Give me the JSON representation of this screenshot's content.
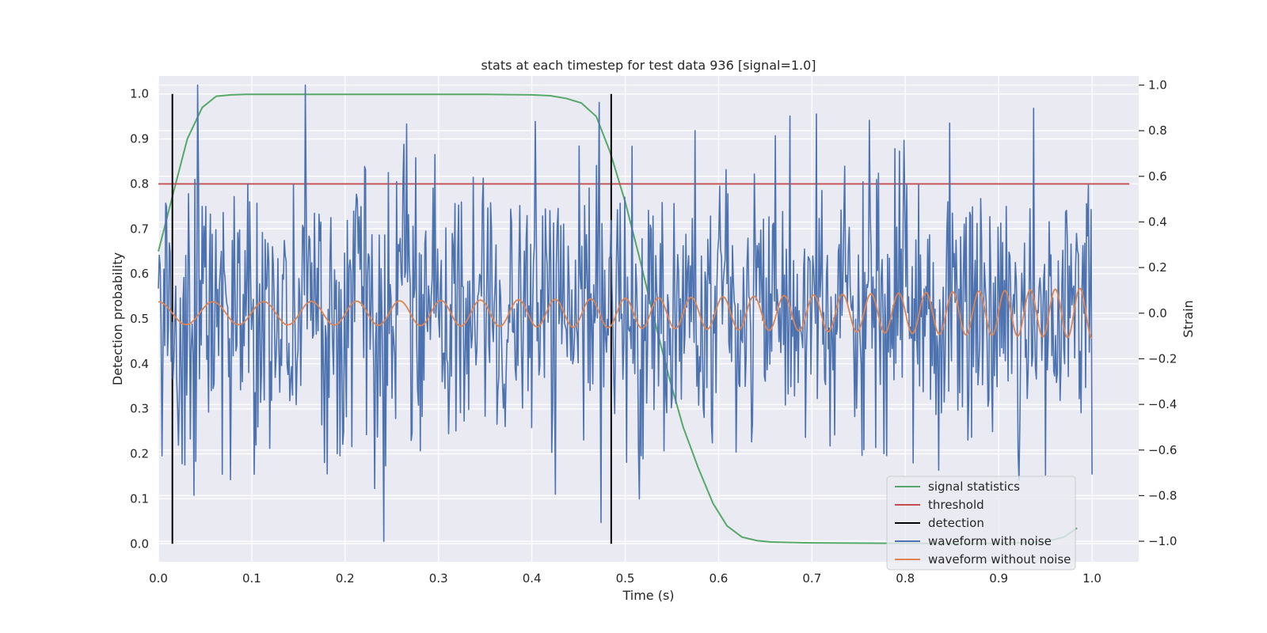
{
  "chart_data": {
    "type": "line",
    "title": "stats at each timestep for test data 936 [signal=1.0]",
    "xlabel": "Time (s)",
    "ylabel_left": "Detection probability",
    "ylabel_right": "Strain",
    "xlim": [
      0.0,
      1.05
    ],
    "ylim_left": [
      -0.04,
      1.04
    ],
    "ylim_right": [
      -1.09,
      1.04
    ],
    "x_ticks": [
      "0.0",
      "0.1",
      "0.2",
      "0.3",
      "0.4",
      "0.5",
      "0.6",
      "0.7",
      "0.8",
      "0.9",
      "1.0"
    ],
    "y_left_ticks": [
      "0.0",
      "0.1",
      "0.2",
      "0.3",
      "0.4",
      "0.5",
      "0.6",
      "0.7",
      "0.8",
      "0.9",
      "1.0"
    ],
    "y_right_ticks": [
      "−1.0",
      "−0.8",
      "−0.6",
      "−0.4",
      "−0.2",
      "0.0",
      "0.2",
      "0.4",
      "0.6",
      "0.8",
      "1.0"
    ],
    "grid": true,
    "legend_position": "lower-right",
    "colors": {
      "signal_statistics": "#55a868",
      "threshold": "#c44e52",
      "detection": "#000000",
      "waveform_with_noise": "#4c72b0",
      "waveform_without_noise": "#dd8452",
      "axes_background": "#eaeaf2",
      "grid": "#ffffff"
    },
    "series": [
      {
        "name": "signal statistics",
        "axis": "left",
        "x": [
          0.0,
          0.016,
          0.031,
          0.047,
          0.062,
          0.078,
          0.094,
          0.15,
          0.25,
          0.35,
          0.4,
          0.42,
          0.437,
          0.453,
          0.469,
          0.484,
          0.5,
          0.516,
          0.531,
          0.547,
          0.562,
          0.578,
          0.594,
          0.609,
          0.625,
          0.641,
          0.656,
          0.7,
          0.8,
          0.9,
          0.95,
          0.97,
          0.984
        ],
        "y": [
          0.65,
          0.78,
          0.9,
          0.97,
          0.995,
          0.998,
          0.999,
          0.999,
          0.999,
          0.999,
          0.998,
          0.996,
          0.99,
          0.98,
          0.95,
          0.87,
          0.76,
          0.63,
          0.5,
          0.37,
          0.26,
          0.17,
          0.09,
          0.04,
          0.015,
          0.007,
          0.004,
          0.002,
          0.001,
          0.001,
          0.004,
          0.015,
          0.035
        ]
      },
      {
        "name": "threshold",
        "axis": "left",
        "x": [
          0.0,
          1.04
        ],
        "y": [
          0.8,
          0.8
        ]
      },
      {
        "name": "detection",
        "axis": "left",
        "events": [
          0.015,
          0.485
        ],
        "y": [
          0.0,
          1.0
        ]
      },
      {
        "name": "waveform with noise",
        "axis": "right",
        "x_range": [
          0.0,
          1.0
        ],
        "n_points": 1024,
        "std": 0.3,
        "y_range": [
          -1.0,
          1.0
        ],
        "clip": [
          -1.0,
          1.0
        ]
      },
      {
        "name": "waveform without noise",
        "axis": "right",
        "x_range": [
          0.0,
          1.0
        ],
        "n_points": 1024,
        "cycles": 27.5,
        "amplitude_start": 0.05,
        "amplitude_end": 0.11,
        "y_end": -0.06
      }
    ]
  }
}
